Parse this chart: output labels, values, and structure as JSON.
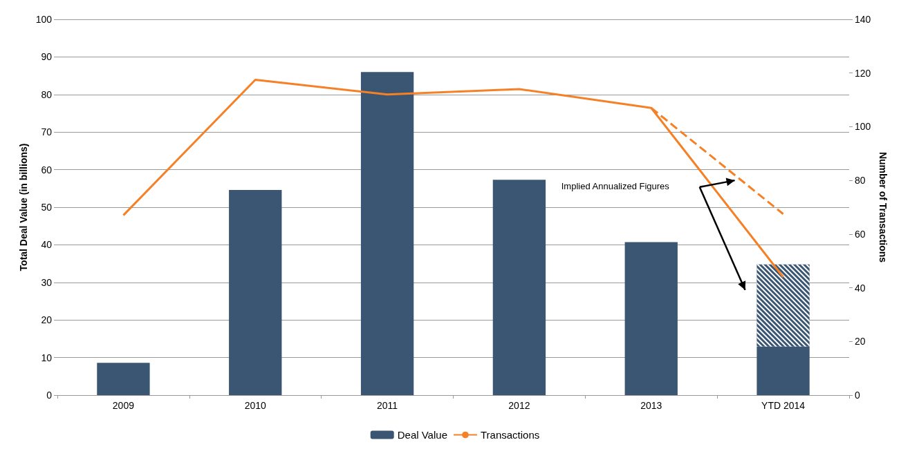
{
  "chart_data": {
    "type": "bar",
    "ylabel": "Total Deal Value (in billions)",
    "y2label": "Number of Transactions",
    "categories": [
      "2009",
      "2010",
      "2011",
      "2012",
      "2013",
      "YTD 2014"
    ],
    "series": [
      {
        "name": "Deal Value",
        "color": "#3b5673",
        "values": [
          8.6,
          54.6,
          86,
          57.3,
          40.7,
          12.9
        ]
      },
      {
        "color": "#3b5673",
        "values": [
          null,
          null,
          null,
          null,
          null,
          21.9
        ]
      },
      {
        "name": "Transactions",
        "type": "line",
        "axis": "y2",
        "color": "#f58025",
        "line_style": "solid",
        "values": [
          67,
          117.5,
          112,
          114,
          107,
          44
        ]
      },
      {
        "type": "line",
        "axis": "y2",
        "color": "#f58025",
        "line_style": "dashed",
        "values": [
          null,
          null,
          null,
          null,
          107,
          67.5
        ]
      }
    ],
    "stacked": true,
    "ylim": [
      0,
      100
    ],
    "yticks": [
      0,
      10,
      20,
      30,
      40,
      50,
      60,
      70,
      80,
      90,
      100
    ],
    "y2lim": [
      0,
      140
    ],
    "y2ticks": [
      0,
      20,
      40,
      60,
      80,
      100,
      120,
      140
    ],
    "annotations": [
      "Implied Annualized Figures"
    ],
    "grid": "y",
    "legend": "bottom",
    "marker": "none"
  }
}
